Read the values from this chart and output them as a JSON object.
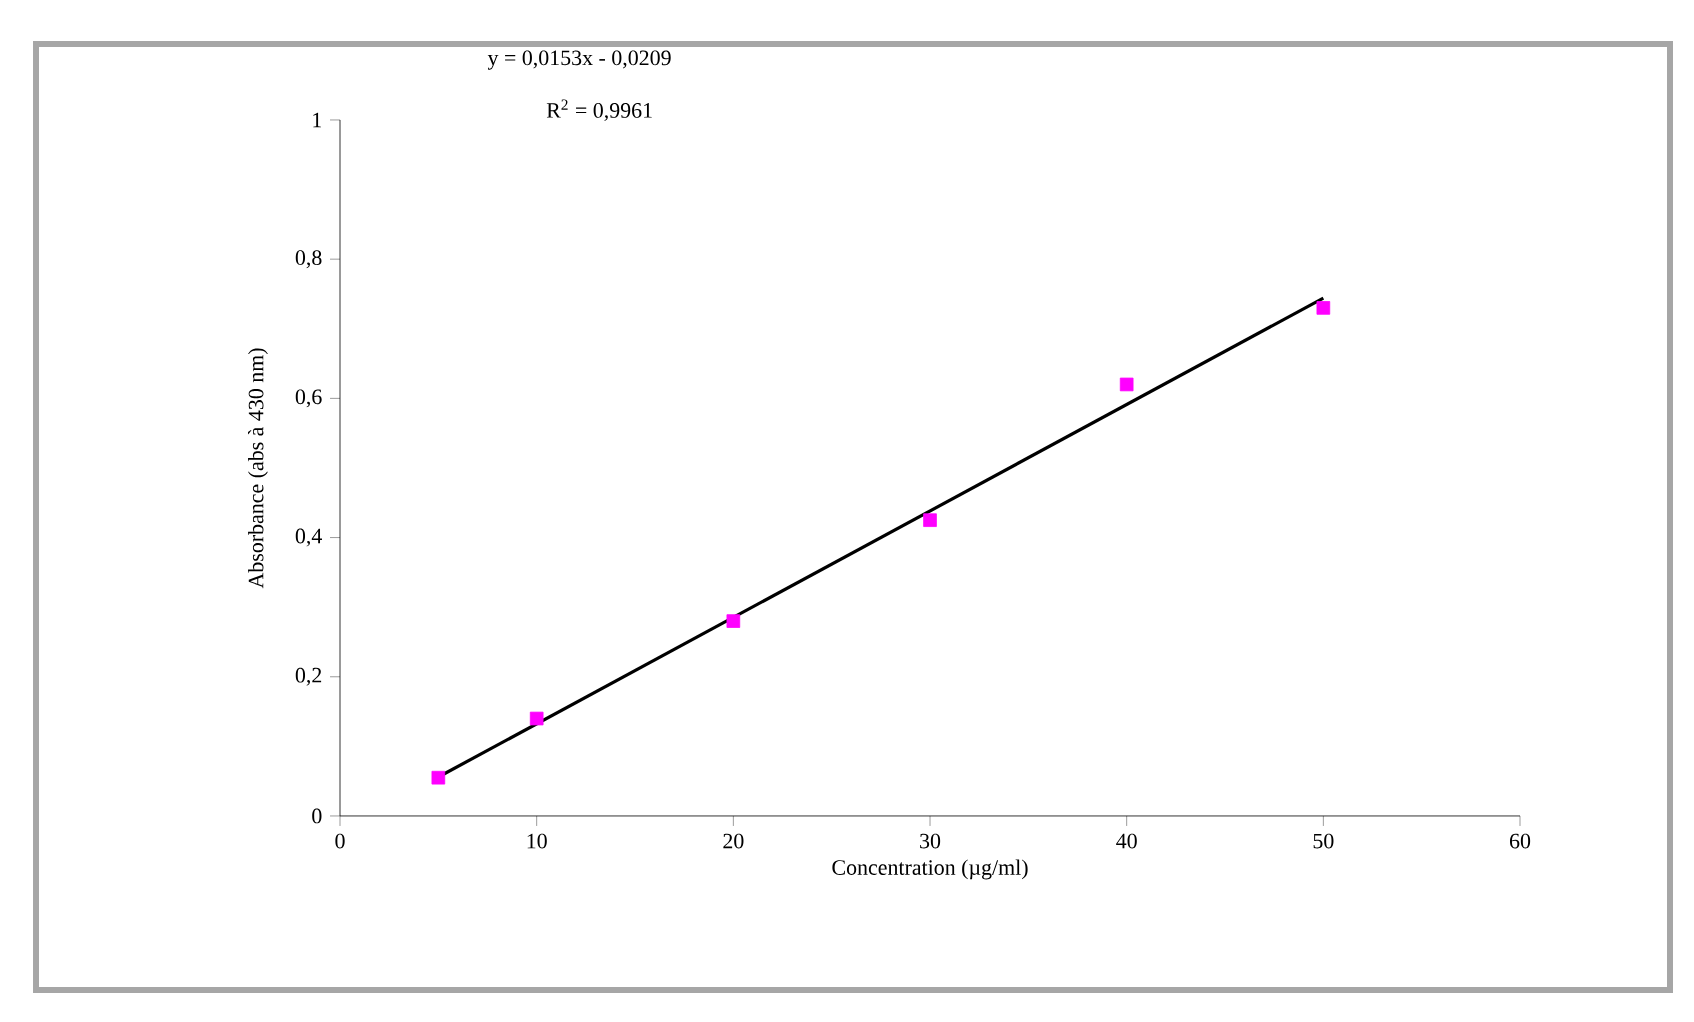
{
  "chart_data": {
    "type": "scatter",
    "xlabel": "Concentration  (µg/ml)",
    "ylabel": "Absorbance (abs à 430 nm)",
    "annotations": [
      "y = 0,0153x - 0,0209",
      "R$^{2}$ = 0,9961"
    ],
    "marker": "square",
    "series": [
      {
        "color": "#ff00ff",
        "x": [
          5,
          10,
          20,
          30,
          40,
          50
        ],
        "values": [
          0.055,
          0.14,
          0.28,
          0.425,
          0.62,
          0.73
        ]
      },
      {
        "type": "line",
        "marker": "none",
        "color": "#000000",
        "x": [
          5,
          50
        ],
        "values": [
          0.056,
          0.744
        ]
      }
    ],
    "xlim": [
      0,
      60
    ],
    "xticks": [
      0,
      10,
      20,
      30,
      40,
      50,
      60
    ],
    "ylim": [
      0,
      1
    ],
    "yticks": [
      0,
      {
        "value": 0.2,
        "label": "0,2"
      },
      {
        "value": 0.4,
        "label": "0,4"
      },
      {
        "value": 0.6,
        "label": "0,6"
      },
      {
        "value": 0.8,
        "label": "0,8"
      },
      1
    ],
    "grid": false
  }
}
